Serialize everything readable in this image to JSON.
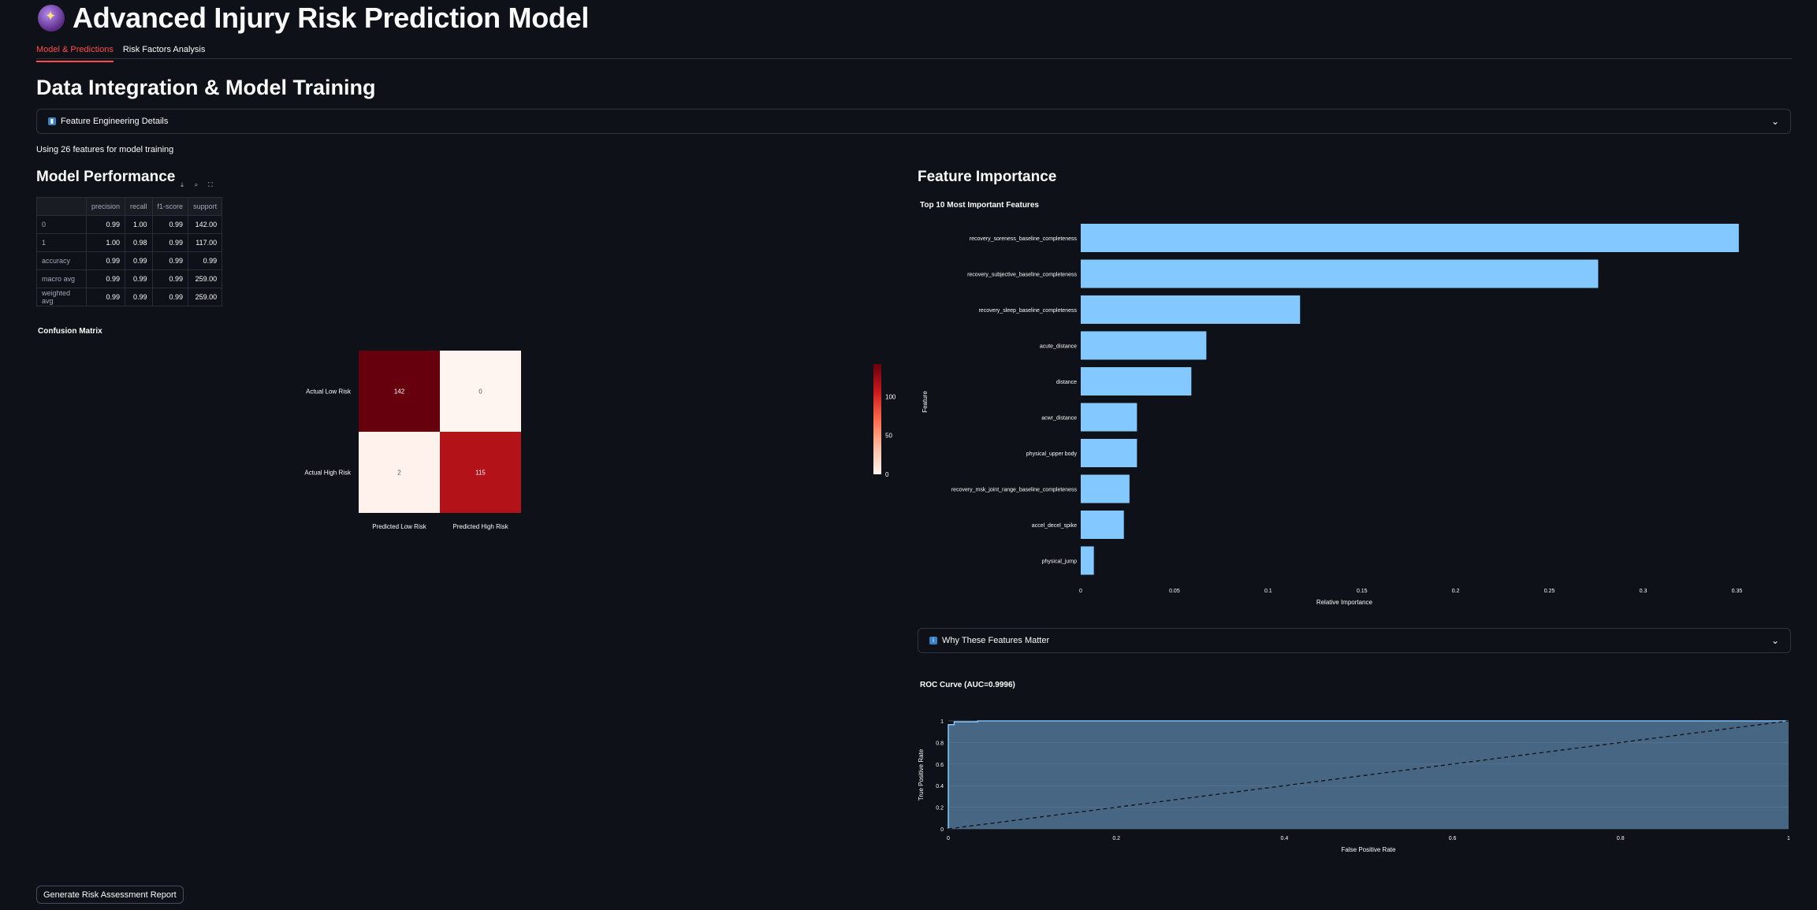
{
  "app": {
    "title": "Advanced Injury Risk Prediction Model",
    "icon": "crystal-ball-icon"
  },
  "tabs": [
    "Model & Predictions",
    "Risk Factors Analysis"
  ],
  "section_title": "Data Integration & Model Training",
  "feature_expander": {
    "label": "Feature Engineering Details",
    "icon": "chart-icon"
  },
  "features_caption": "Using 26 features for model training",
  "model_performance": {
    "title": "Model Performance",
    "columns": [
      "",
      "precision",
      "recall",
      "f1-score",
      "support"
    ],
    "rows": [
      [
        "0",
        "0.99",
        "1.00",
        "0.99",
        "142.00"
      ],
      [
        "1",
        "1.00",
        "0.98",
        "0.99",
        "117.00"
      ],
      [
        "accuracy",
        "0.99",
        "0.99",
        "0.99",
        "0.99"
      ],
      [
        "macro avg",
        "0.99",
        "0.99",
        "0.99",
        "259.00"
      ],
      [
        "weighted avg",
        "0.99",
        "0.99",
        "0.99",
        "259.00"
      ]
    ]
  },
  "confusion_matrix": {
    "title": "Confusion Matrix",
    "row_labels": [
      "Actual Low Risk",
      "Actual High Risk"
    ],
    "col_labels": [
      "Predicted Low Risk",
      "Predicted High Risk"
    ],
    "values": [
      [
        142,
        0
      ],
      [
        2,
        115
      ]
    ],
    "colorbar_ticks": [
      "100",
      "50",
      "0"
    ],
    "colorscale": [
      "#fff5f0",
      "#67000d"
    ]
  },
  "feature_importance": {
    "title": "Feature Importance",
    "bar_color": "#83c9ff"
  },
  "why_expander": {
    "label": "Why These Features Matter",
    "icon": "info-icon"
  },
  "generate_button": "Generate Risk Assessment Report",
  "chart_data": [
    {
      "type": "bar",
      "orientation": "horizontal",
      "title": "Top 10 Most Important Features",
      "xlabel": "Relative Importance",
      "ylabel": "Feature",
      "categories": [
        "recovery_soreness_baseline_completeness",
        "recovery_subjective_baseline_completeness",
        "recovery_sleep_baseline_completeness",
        "acute_distance",
        "distance",
        "acwr_distance",
        "physical_upper body",
        "recovery_msk_joint_range_baseline_completeness",
        "accel_decel_spike",
        "physical_jump"
      ],
      "values": [
        0.351,
        0.276,
        0.117,
        0.067,
        0.059,
        0.03,
        0.03,
        0.026,
        0.023,
        0.007
      ],
      "xlim": [
        0,
        0.37
      ],
      "xticks": [
        "0",
        "0.05",
        "0.1",
        "0.15",
        "0.2",
        "0.25",
        "0.3",
        "0.35"
      ],
      "xtick_values": [
        0,
        0.05,
        0.1,
        0.15,
        0.2,
        0.25,
        0.3,
        0.35
      ]
    },
    {
      "type": "area",
      "title": "ROC Curve (AUC=0.9996)",
      "xlabel": "False Positive Rate",
      "ylabel": "True Positive Rate",
      "x": [
        0,
        0,
        0.007,
        0.007,
        0.035,
        0.035,
        1
      ],
      "y": [
        0,
        0.965,
        0.965,
        0.992,
        0.992,
        1,
        1
      ],
      "diagonal": true,
      "xlim": [
        0,
        1
      ],
      "ylim": [
        0,
        1
      ],
      "xticks": [
        "0",
        "0.2",
        "0.4",
        "0.6",
        "0.8",
        "1"
      ],
      "yticks": [
        "0",
        "0.2",
        "0.4",
        "0.6",
        "0.8",
        "1"
      ],
      "tick_values": [
        0,
        0.2,
        0.4,
        0.6,
        0.8,
        1
      ],
      "line_color": "#83c9ff",
      "fill_color": "#4a6b8a"
    }
  ]
}
